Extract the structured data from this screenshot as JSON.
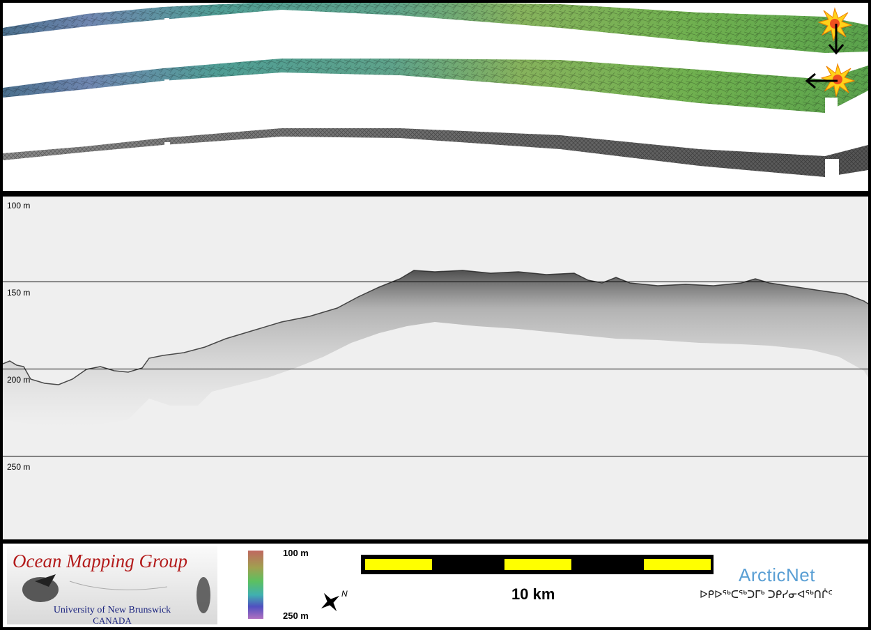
{
  "profile": {
    "depth_labels": [
      "100 m",
      "150 m",
      "200 m",
      "250 m"
    ]
  },
  "strips": {
    "names": [
      "shaded-relief-sun-north",
      "shaded-relief-sun-east",
      "backscatter-mosaic"
    ],
    "illumination_icons": [
      "sun-icon",
      "sun-icon"
    ],
    "arrow_directions": [
      "down",
      "left"
    ]
  },
  "footer": {
    "omg_logo": {
      "title": "Ocean Mapping Group",
      "university": "University of New Brunswick",
      "country": "CANADA"
    },
    "colorbar": {
      "top_label": "100 m",
      "bottom_label": "250 m"
    },
    "north_arrow": {
      "label": "N"
    },
    "scale": {
      "label": "10 km"
    },
    "arcticnet": {
      "name": "ArcticNet",
      "syllabics": "ᐅᑭᐅᖅᑕᖅᑐᒥᒃ ᑐᑭᓯᓂᐊᖅᑎᒌᑦ"
    },
    "colors": {
      "scale_fill": "#ffff00",
      "omg_title": "#b31b1b",
      "arcticnet": "#5a9fd4"
    }
  }
}
